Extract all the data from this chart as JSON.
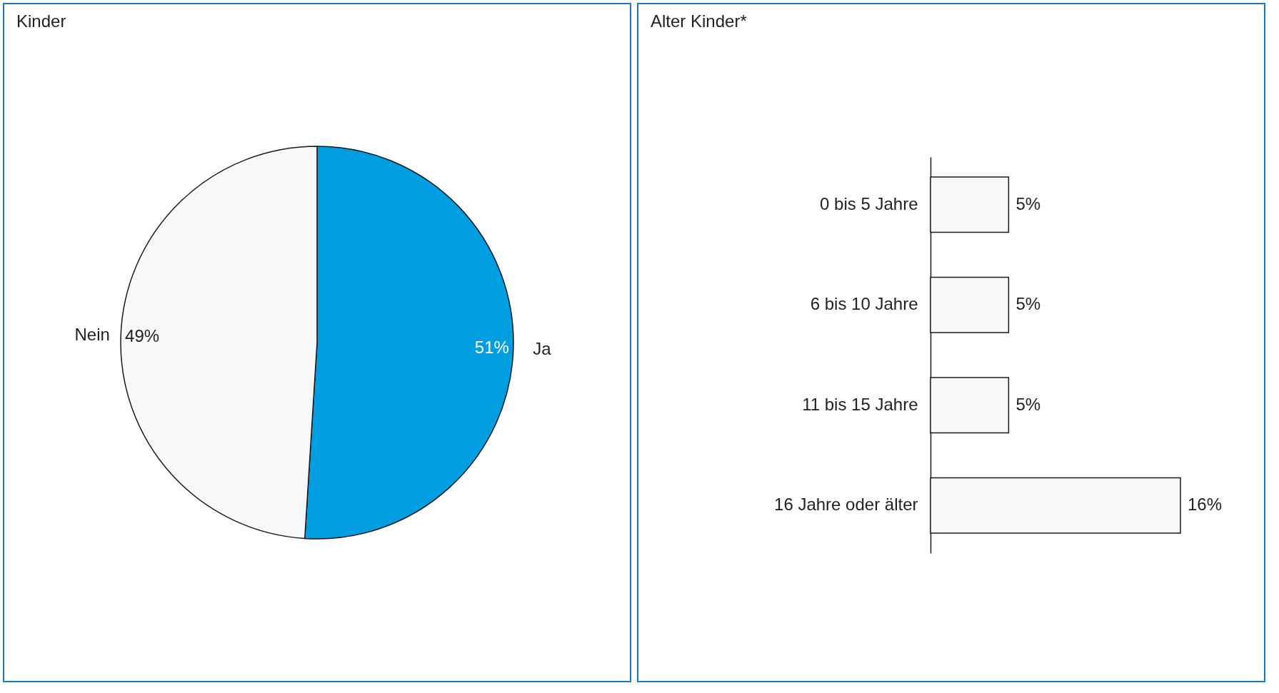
{
  "chart_data": [
    {
      "type": "pie",
      "title": "Kinder",
      "categories": [
        "Ja",
        "Nein"
      ],
      "values": [
        51,
        49
      ],
      "colors": [
        "#009ee0",
        "#f8f8f8"
      ],
      "value_labels": [
        "51%",
        "49%"
      ]
    },
    {
      "type": "bar",
      "orientation": "horizontal",
      "title": "Alter Kinder*",
      "categories": [
        "0 bis 5 Jahre",
        "6 bis 10 Jahre",
        "11 bis 15 Jahre",
        "16 Jahre oder älter"
      ],
      "values": [
        5,
        5,
        5,
        16
      ],
      "color": "#f8f8f8",
      "value_labels": [
        "5%",
        "5%",
        "5%",
        "16%"
      ]
    }
  ]
}
